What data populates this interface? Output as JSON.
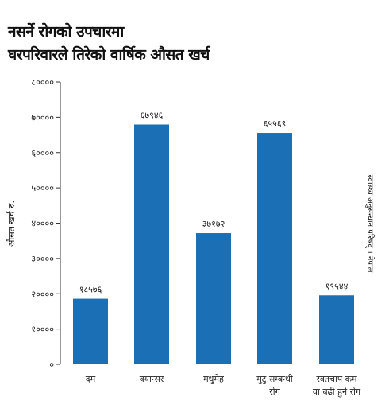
{
  "title_line1": "नसर्ने रोगको उपचारमा",
  "title_line2": "घरपरिवारले तिरेको वार्षिक औसत खर्च",
  "chart_data": {
    "type": "bar",
    "title": "नसर्ने रोगको उपचारमा घरपरिवारले तिरेको वार्षिक औसत खर्च",
    "ylabel": "औसत खर्च रु.",
    "source": "स्वास्थ्य अनुसन्धान परिषद् । नेपाल",
    "ylim": [
      0,
      80000
    ],
    "yticks": [
      0,
      10000,
      20000,
      30000,
      40000,
      50000,
      60000,
      70000,
      80000
    ],
    "ytick_labels": [
      "०",
      "१००००",
      "२००००",
      "३००००",
      "४००००",
      "५००००",
      "६००००",
      "७००००",
      "८००००"
    ],
    "categories": [
      [
        "दम"
      ],
      [
        "क्यान्सर"
      ],
      [
        "मधुमेह"
      ],
      [
        "मुटु सम्बन्धी",
        "रोग"
      ],
      [
        "रक्तचाप कम",
        "वा बढी हुने रोग"
      ]
    ],
    "values": [
      18576,
      67946,
      37172,
      65569,
      19544
    ],
    "value_labels": [
      "१८५७६",
      "६७९४६",
      "३७१७२",
      "६५५६९",
      "१९५४४"
    ],
    "bar_color": "#1a6fb5",
    "grid": false
  }
}
